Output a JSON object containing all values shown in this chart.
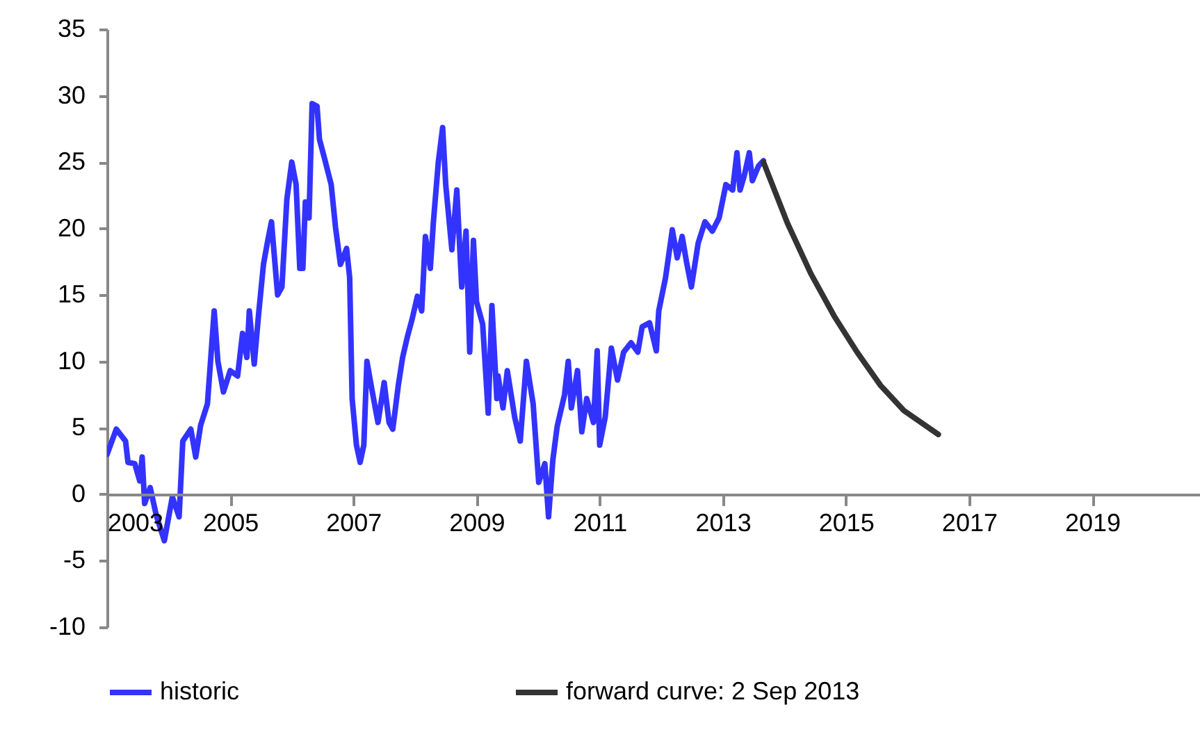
{
  "chart_data": {
    "type": "line",
    "xlim": [
      2003,
      2020.75
    ],
    "xticks": [
      2003,
      2005,
      2007,
      2009,
      2011,
      2013,
      2015,
      2017,
      2019
    ],
    "ylim": [
      -10,
      35
    ],
    "yticks": [
      -10,
      -5,
      0,
      5,
      10,
      15,
      20,
      25,
      30,
      35
    ],
    "legend": "bottom",
    "series": [
      {
        "name": "historic",
        "color": "#3333ff",
        "x": [
          2003.0,
          2003.15,
          2003.3,
          2003.34,
          2003.45,
          2003.53,
          2003.57,
          2003.61,
          2003.7,
          2003.8,
          2003.93,
          2004.06,
          2004.17,
          2004.23,
          2004.36,
          2004.44,
          2004.52,
          2004.63,
          2004.74,
          2004.8,
          2004.89,
          2005.0,
          2005.12,
          2005.2,
          2005.27,
          2005.31,
          2005.39,
          2005.46,
          2005.54,
          2005.61,
          2005.67,
          2005.77,
          2005.84,
          2005.92,
          2006.0,
          2006.07,
          2006.13,
          2006.18,
          2006.22,
          2006.28,
          2006.33,
          2006.41,
          2006.45,
          2006.53,
          2006.64,
          2006.71,
          2006.79,
          2006.89,
          2006.94,
          2006.98,
          2007.05,
          2007.11,
          2007.17,
          2007.22,
          2007.3,
          2007.4,
          2007.5,
          2007.58,
          2007.64,
          2007.73,
          2007.8,
          2007.88,
          2007.95,
          2008.04,
          2008.11,
          2008.17,
          2008.25,
          2008.3,
          2008.38,
          2008.45,
          2008.5,
          2008.6,
          2008.68,
          2008.76,
          2008.83,
          2008.89,
          2008.95,
          2009.0,
          2009.1,
          2009.19,
          2009.25,
          2009.33,
          2009.35,
          2009.43,
          2009.5,
          2009.62,
          2009.71,
          2009.81,
          2009.92,
          2010.01,
          2010.11,
          2010.17,
          2010.24,
          2010.31,
          2010.43,
          2010.49,
          2010.54,
          2010.64,
          2010.71,
          2010.79,
          2010.9,
          2010.96,
          2011.0,
          2011.09,
          2011.19,
          2011.29,
          2011.39,
          2011.51,
          2011.62,
          2011.69,
          2011.81,
          2011.92,
          2011.96,
          2012.07,
          2012.18,
          2012.26,
          2012.34,
          2012.41,
          2012.49,
          2012.6,
          2012.71,
          2012.83,
          2012.94,
          2013.05,
          2013.16,
          2013.23,
          2013.28,
          2013.35,
          2013.43,
          2013.48,
          2013.58,
          2013.66
        ],
        "values": [
          3.0,
          4.9,
          4.0,
          2.4,
          2.3,
          1.0,
          2.8,
          -0.7,
          0.5,
          -1.6,
          -3.5,
          -0.2,
          -1.7,
          4.0,
          4.9,
          2.8,
          5.2,
          6.8,
          13.8,
          10.0,
          7.7,
          9.3,
          8.9,
          12.1,
          10.3,
          13.8,
          9.8,
          13.5,
          17.3,
          19.1,
          20.5,
          15.0,
          15.6,
          22.2,
          25.0,
          23.3,
          17.0,
          17.0,
          22.0,
          20.8,
          29.4,
          29.2,
          26.7,
          25.3,
          23.3,
          20.1,
          17.3,
          18.5,
          16.3,
          7.2,
          3.7,
          2.4,
          3.7,
          10.0,
          7.9,
          5.4,
          8.4,
          5.4,
          4.9,
          8.2,
          10.3,
          11.9,
          13.1,
          14.9,
          13.8,
          19.4,
          17.0,
          20.5,
          25.0,
          27.6,
          23.3,
          18.4,
          22.9,
          15.6,
          19.8,
          10.7,
          19.1,
          14.5,
          12.8,
          6.1,
          14.2,
          7.2,
          8.9,
          6.5,
          9.3,
          5.8,
          4.0,
          10.0,
          6.8,
          0.9,
          2.3,
          -1.7,
          2.6,
          5.1,
          7.5,
          10.0,
          6.5,
          9.3,
          4.7,
          7.2,
          5.4,
          10.8,
          3.7,
          5.8,
          11.0,
          8.6,
          10.7,
          11.4,
          10.7,
          12.6,
          12.9,
          10.8,
          13.8,
          16.3,
          19.9,
          17.8,
          19.4,
          17.5,
          15.6,
          18.9,
          20.5,
          19.8,
          20.8,
          23.3,
          22.9,
          25.7,
          22.9,
          24.0,
          25.7,
          23.6,
          24.7,
          25.1
        ]
      },
      {
        "name": "forward curve: 2 Sep 2013",
        "color": "#333333",
        "x": [
          2013.66,
          2014.05,
          2014.43,
          2014.81,
          2015.18,
          2015.56,
          2015.94,
          2016.5
        ],
        "values": [
          25.0,
          20.4,
          16.6,
          13.4,
          10.7,
          8.2,
          6.3,
          4.5
        ]
      }
    ]
  }
}
